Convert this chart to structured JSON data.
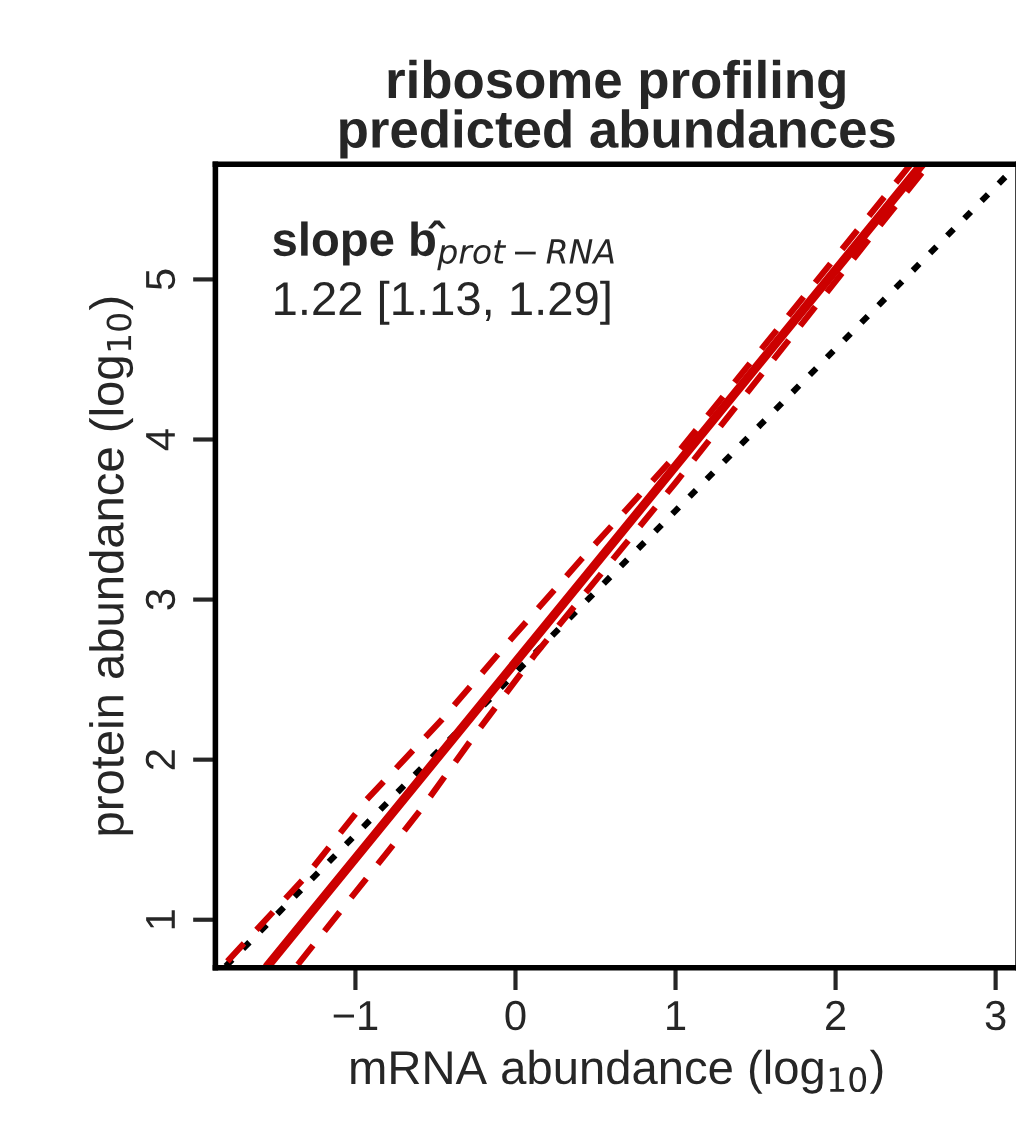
{
  "chart_data": {
    "type": "line",
    "title": "ribosome profiling\npredicted abundances",
    "xlabel": "mRNA abundance (log$_{10}$)",
    "ylabel": "protein abundance (log$_{10}$)",
    "annotations": [
      "slope b̂$_{prot−RNA}$",
      "1.22 [1.13, 1.29]"
    ],
    "xlim": [
      -1.875,
      3.14
    ],
    "ylim": [
      0.7,
      5.72
    ],
    "xticks": [
      {
        "value": -1,
        "label": "−1"
      },
      0,
      1,
      2,
      3
    ],
    "yticks": [
      1,
      2,
      3,
      4,
      5
    ],
    "grid": false,
    "marker": "none",
    "series": [
      {
        "color": "#000000",
        "line_style": "dotted",
        "x": [
          -1.81,
          3.07
        ],
        "values": [
          0.71,
          5.65
        ]
      },
      {
        "color": "#cc0000",
        "line_style": "dashed",
        "x": [
          -1.8,
          -1.31,
          -0.93,
          -0.46,
          -0.03,
          0.41,
          1.0,
          2.47
        ],
        "values": [
          0.74,
          1.27,
          1.75,
          2.25,
          2.75,
          3.25,
          3.9,
          5.72
        ]
      },
      {
        "color": "#cc0000",
        "line_style": "dashed",
        "x": [
          -1.36,
          -0.81,
          -0.59,
          -0.25,
          0.125,
          1.0,
          2.55
        ],
        "values": [
          0.72,
          1.41,
          1.69,
          2.16,
          2.66,
          3.73,
          5.68
        ]
      },
      {
        "color": "#cc0000",
        "line_style": "solid",
        "x": [
          -1.55,
          2.54
        ],
        "values": [
          0.71,
          5.72
        ]
      }
    ]
  }
}
